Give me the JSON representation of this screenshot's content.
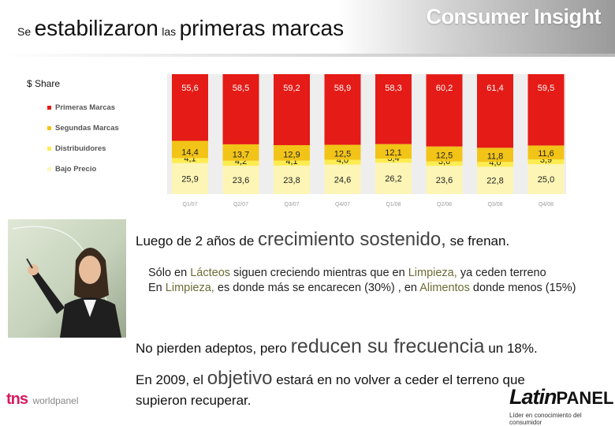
{
  "header": {
    "title_parts": [
      {
        "text": "Se",
        "size": "sm"
      },
      {
        "text": "estabilizaron",
        "size": "lg"
      },
      {
        "text": "las",
        "size": "sm"
      },
      {
        "text": "primeras marcas",
        "size": "lg"
      }
    ],
    "brand": "Consumer Insight"
  },
  "chart_data": {
    "type": "bar",
    "stacked": true,
    "ylabel": "$ Share",
    "categories": [
      "Q1/07",
      "Q2/07",
      "Q3/07",
      "Q4/07",
      "Q1/08",
      "Q2/08",
      "Q3/08",
      "Q4/08"
    ],
    "series": [
      {
        "name": "Bajo Precio",
        "color": "#fdf5b5",
        "values": [
          25.9,
          23.6,
          23.8,
          24.6,
          26.2,
          23.6,
          22.8,
          25.0
        ],
        "labels": [
          "25,9",
          "23,6",
          "23,8",
          "24,6",
          "26,2",
          "23,6",
          "22,8",
          "25,0"
        ]
      },
      {
        "name": "Distribuidores",
        "color": "#fcec50",
        "values": [
          4.1,
          4.2,
          4.1,
          4.0,
          3.4,
          3.6,
          4.0,
          3.9
        ],
        "labels": [
          "4,1",
          "4,2",
          "4,1",
          "4,0",
          "3,4",
          "3,6",
          "4,0",
          "3,9"
        ]
      },
      {
        "name": "Segundas Marcas",
        "color": "#f2c418",
        "values": [
          14.4,
          13.7,
          12.9,
          12.5,
          12.1,
          12.5,
          11.8,
          11.6
        ],
        "labels": [
          "14,4",
          "13,7",
          "12,9",
          "12,5",
          "12,1",
          "12,5",
          "11,8",
          "11,6"
        ]
      },
      {
        "name": "Primeras Marcas",
        "color": "#e41b17",
        "values": [
          55.6,
          58.5,
          59.2,
          58.9,
          58.3,
          60.2,
          61.4,
          59.5
        ],
        "labels": [
          "55,6",
          "58,5",
          "59,2",
          "58,9",
          "58,3",
          "60,2",
          "61,4",
          "59,5"
        ]
      }
    ],
    "legend": [
      "Primeras Marcas",
      "Segundas Marcas",
      "Distribuidores",
      "Bajo Precio"
    ],
    "legend_position": "left",
    "grid": false
  },
  "body": {
    "p1_a": "Luego de 2 años de",
    "p1_b": "crecimiento sostenido,",
    "p1_c": "se frenan.",
    "s1_a": "Sólo en",
    "s1_b": "Lácteos",
    "s1_c": "siguen creciendo mientras que en",
    "s1_d": "Limpieza,",
    "s1_e": "ya ceden terreno",
    "s2_a": "En",
    "s2_b": "Limpieza,",
    "s2_c": "es donde más se encarecen (30%) , en",
    "s2_d": "Alimentos",
    "s2_e": "donde menos (15%)",
    "p2_a": "No pierden adeptos, pero",
    "p2_b": "reducen su frecuencia",
    "p2_c": "un 18%.",
    "p3_a": "En 2009, el",
    "p3_b": "objetivo",
    "p3_c": "estará en no volver a ceder el terreno que supieron recuperar."
  },
  "footer": {
    "tns": "tns",
    "worldpanel": "worldpanel",
    "latin_a": "Latin",
    "latin_b": "PANEL",
    "latin_tag": "Líder en conocimiento del consumidor"
  }
}
